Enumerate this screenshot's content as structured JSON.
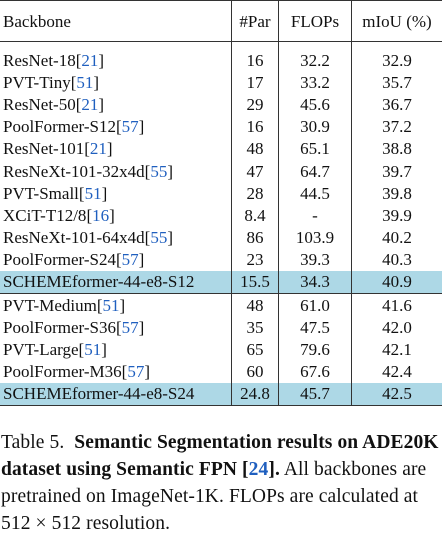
{
  "table": {
    "headers": {
      "backbone": "Backbone",
      "par": "#Par",
      "flops": "FLOPs",
      "miou": "mIoU (%)"
    },
    "groups": [
      {
        "rows": [
          {
            "name": "ResNet-18",
            "ref": "21",
            "par": "16",
            "flops": "32.2",
            "miou": "32.9",
            "highlight": false
          },
          {
            "name": "PVT-Tiny",
            "ref": "51",
            "par": "17",
            "flops": "33.2",
            "miou": "35.7",
            "highlight": false
          },
          {
            "name": "ResNet-50",
            "ref": "21",
            "par": "29",
            "flops": "45.6",
            "miou": "36.7",
            "highlight": false
          },
          {
            "name": "PoolFormer-S12",
            "ref": "57",
            "par": "16",
            "flops": "30.9",
            "miou": "37.2",
            "highlight": false
          },
          {
            "name": "ResNet-101",
            "ref": "21",
            "par": "48",
            "flops": "65.1",
            "miou": "38.8",
            "highlight": false
          },
          {
            "name": "ResNeXt-101-32x4d",
            "ref": "55",
            "par": "47",
            "flops": "64.7",
            "miou": "39.7",
            "highlight": false
          },
          {
            "name": "PVT-Small",
            "ref": "51",
            "par": "28",
            "flops": "44.5",
            "miou": "39.8",
            "highlight": false
          },
          {
            "name": "XCiT-T12/8",
            "ref": "16",
            "par": "8.4",
            "flops": "-",
            "miou": "39.9",
            "highlight": false
          },
          {
            "name": "ResNeXt-101-64x4d",
            "ref": "55",
            "par": "86",
            "flops": "103.9",
            "miou": "40.2",
            "highlight": false
          },
          {
            "name": "PoolFormer-S24",
            "ref": "57",
            "par": "23",
            "flops": "39.3",
            "miou": "40.3",
            "highlight": false
          },
          {
            "name": "SCHEMEformer-44-e8-S12",
            "ref": "",
            "par": "15.5",
            "flops": "34.3",
            "miou": "40.9",
            "highlight": true
          }
        ]
      },
      {
        "rows": [
          {
            "name": "PVT-Medium",
            "ref": "51",
            "par": "48",
            "flops": "61.0",
            "miou": "41.6",
            "highlight": false
          },
          {
            "name": "PoolFormer-S36",
            "ref": "57",
            "par": "35",
            "flops": "47.5",
            "miou": "42.0",
            "highlight": false
          },
          {
            "name": "PVT-Large",
            "ref": "51",
            "par": "65",
            "flops": "79.6",
            "miou": "42.1",
            "highlight": false
          },
          {
            "name": "PoolFormer-M36",
            "ref": "57",
            "par": "60",
            "flops": "67.6",
            "miou": "42.4",
            "highlight": false
          },
          {
            "name": "SCHEMEformer-44-e8-S24",
            "ref": "",
            "par": "24.8",
            "flops": "45.7",
            "miou": "42.5",
            "highlight": true
          }
        ]
      }
    ]
  },
  "caption": {
    "label": "Table 5.",
    "bold_text": "Semantic Segmentation results on ADE20K dataset using Semantic FPN",
    "bold_ref": "24",
    "bold_end": ".",
    "body": "All backbones are pretrained on ImageNet-1K. FLOPs are calculated at 512 × 512 resolution."
  },
  "colors": {
    "highlight": "#add8e6",
    "citation": "#1f5fbf"
  }
}
